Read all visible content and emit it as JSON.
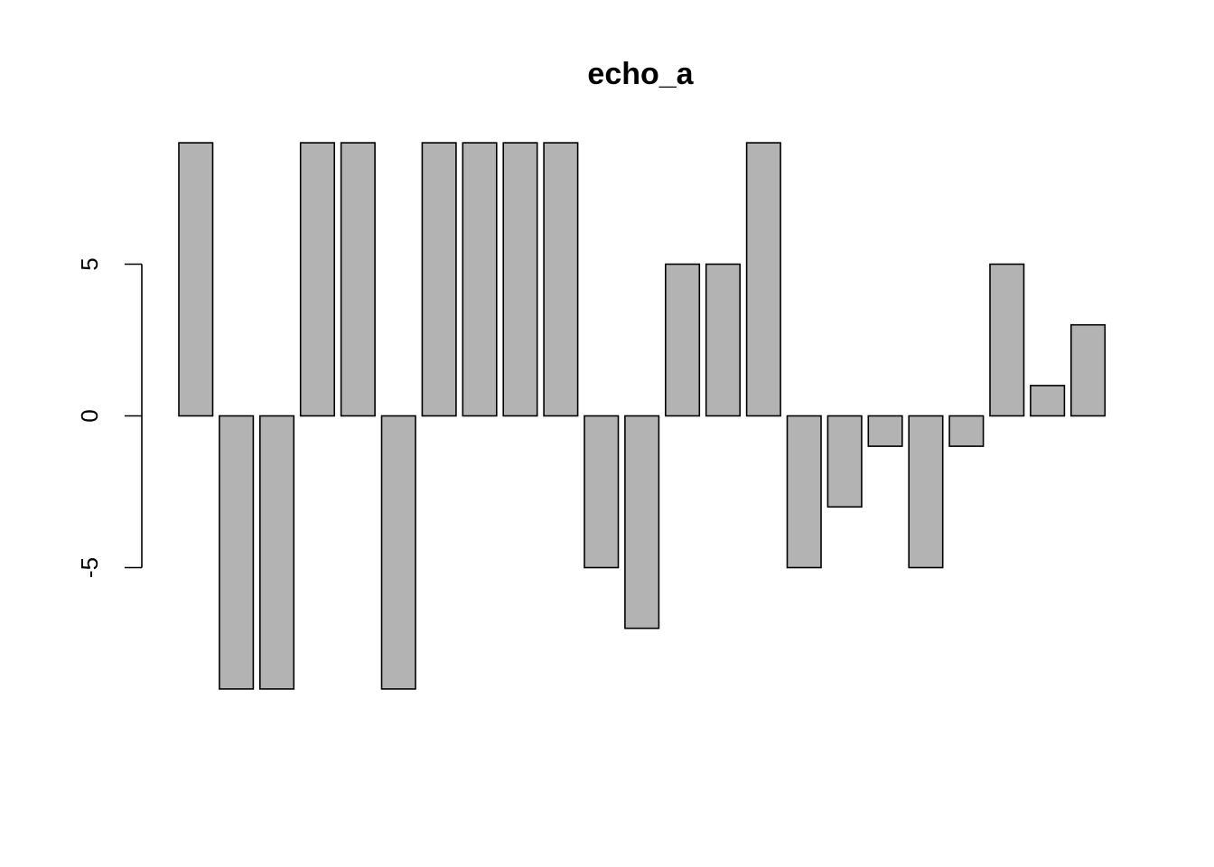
{
  "chart_data": {
    "type": "bar",
    "title": "echo_a",
    "xlabel": "",
    "ylabel": "",
    "values": [
      9,
      -9,
      -9,
      9,
      9,
      -9,
      9,
      9,
      9,
      9,
      -5,
      -7,
      5,
      5,
      9,
      -5,
      -3,
      -1,
      -5,
      -1,
      5,
      1,
      3
    ],
    "y_ticks": [
      -5,
      0,
      5
    ],
    "ylim": [
      -9,
      9
    ],
    "grid": false,
    "legend": "none",
    "bar_fill": "#b3b3b3",
    "bar_border": "#000000"
  }
}
